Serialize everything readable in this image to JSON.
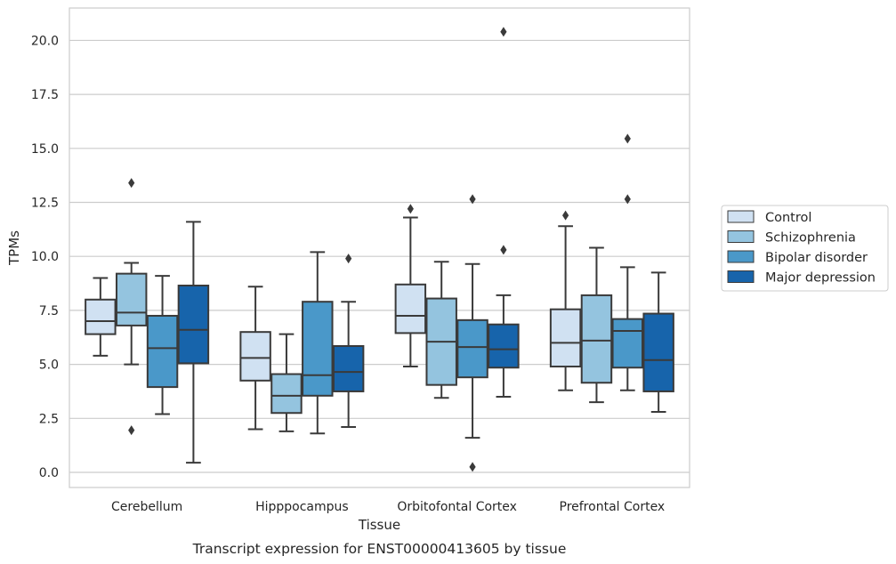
{
  "chart_data": {
    "type": "boxplot",
    "caption": "Transcript expression for ENST00000413605 by tissue",
    "xlabel": "Tissue",
    "ylabel": "TPMs",
    "ylim": [
      -0.7,
      21.5
    ],
    "yticks": [
      "0.0",
      "2.5",
      "5.0",
      "7.5",
      "10.0",
      "12.5",
      "15.0",
      "17.5",
      "20.0"
    ],
    "grid": true,
    "legend_position": "right",
    "categories": [
      "Cerebellum",
      "Hipppocampus",
      "Orbitofontal Cortex",
      "Prefrontal Cortex"
    ],
    "series": [
      {
        "name": "Control",
        "color": "#d0e1f2",
        "boxes": [
          {
            "whislo": 5.4,
            "q1": 6.4,
            "med": 7.0,
            "q3": 8.0,
            "whishi": 9.0,
            "fliers": []
          },
          {
            "whislo": 2.0,
            "q1": 4.25,
            "med": 5.3,
            "q3": 6.5,
            "whishi": 8.6,
            "fliers": []
          },
          {
            "whislo": 4.9,
            "q1": 6.45,
            "med": 7.25,
            "q3": 8.7,
            "whishi": 11.8,
            "fliers": [
              12.2
            ]
          },
          {
            "whislo": 3.8,
            "q1": 4.9,
            "med": 6.0,
            "q3": 7.55,
            "whishi": 11.4,
            "fliers": [
              11.9
            ]
          }
        ]
      },
      {
        "name": "Schizophrenia",
        "color": "#94c4df",
        "boxes": [
          {
            "whislo": 5.0,
            "q1": 6.8,
            "med": 7.4,
            "q3": 9.2,
            "whishi": 9.7,
            "fliers": [
              1.95,
              13.4
            ]
          },
          {
            "whislo": 1.9,
            "q1": 2.75,
            "med": 3.55,
            "q3": 4.55,
            "whishi": 6.4,
            "fliers": []
          },
          {
            "whislo": 3.45,
            "q1": 4.05,
            "med": 6.05,
            "q3": 8.05,
            "whishi": 9.75,
            "fliers": []
          },
          {
            "whislo": 3.25,
            "q1": 4.15,
            "med": 6.1,
            "q3": 8.2,
            "whishi": 10.4,
            "fliers": []
          }
        ]
      },
      {
        "name": "Bipolar disorder",
        "color": "#4a98c9",
        "boxes": [
          {
            "whislo": 2.7,
            "q1": 3.95,
            "med": 5.75,
            "q3": 7.25,
            "whishi": 9.1,
            "fliers": []
          },
          {
            "whislo": 1.8,
            "q1": 3.55,
            "med": 4.5,
            "q3": 7.9,
            "whishi": 10.2,
            "fliers": []
          },
          {
            "whislo": 1.6,
            "q1": 4.4,
            "med": 5.8,
            "q3": 7.05,
            "whishi": 9.65,
            "fliers": [
              0.25,
              12.65
            ]
          },
          {
            "whislo": 3.8,
            "q1": 4.85,
            "med": 6.55,
            "q3": 7.1,
            "whishi": 9.5,
            "fliers": [
              12.65,
              15.45
            ]
          }
        ]
      },
      {
        "name": "Major depression",
        "color": "#1764ab",
        "boxes": [
          {
            "whislo": 0.45,
            "q1": 5.05,
            "med": 6.6,
            "q3": 8.65,
            "whishi": 11.6,
            "fliers": []
          },
          {
            "whislo": 2.1,
            "q1": 3.75,
            "med": 4.65,
            "q3": 5.85,
            "whishi": 7.9,
            "fliers": [
              9.9
            ]
          },
          {
            "whislo": 3.5,
            "q1": 4.85,
            "med": 5.7,
            "q3": 6.85,
            "whishi": 8.2,
            "fliers": [
              10.3,
              20.4
            ]
          },
          {
            "whislo": 2.8,
            "q1": 3.75,
            "med": 5.2,
            "q3": 7.35,
            "whishi": 9.25,
            "fliers": []
          }
        ]
      }
    ]
  }
}
